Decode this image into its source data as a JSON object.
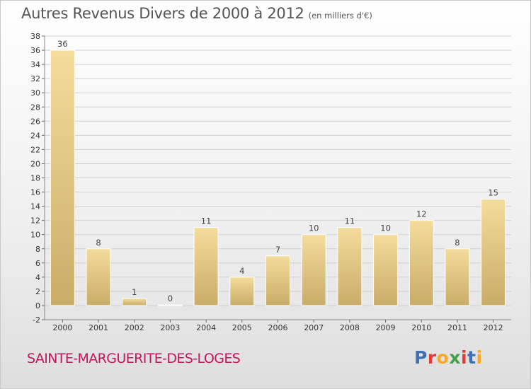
{
  "title": "Autres Revenus Divers de 2000 à 2012",
  "unit_note": "(en milliers d'€)",
  "commune": "SAINTE-MARGUERITE-DES-LOGES",
  "logo": {
    "text": "Proxiti",
    "letter_colors": [
      "#3f6fb5",
      "#e53935",
      "#f9a825",
      "#43a047",
      "#e53935",
      "#3f6fb5",
      "#f9a825"
    ]
  },
  "colors": {
    "bar_light": "#f4dc9c",
    "bar_dark": "#c9ac68",
    "grid": "#cfcfcf",
    "commune": "#c2185b",
    "title": "#555555"
  },
  "chart_data": {
    "type": "bar",
    "title": "Autres Revenus Divers de 2000 à 2012",
    "subtitle": "(en milliers d'€)",
    "categories": [
      "2000",
      "2001",
      "2002",
      "2003",
      "2004",
      "2005",
      "2006",
      "2007",
      "2008",
      "2009",
      "2010",
      "2011",
      "2012"
    ],
    "values": [
      36,
      8,
      1,
      0,
      11,
      4,
      7,
      10,
      11,
      10,
      12,
      8,
      15
    ],
    "data_labels": [
      "36",
      "8",
      "1",
      "0",
      "11",
      "4",
      "7",
      "10",
      "11",
      "10",
      "12",
      "8",
      "15"
    ],
    "ylim": [
      -2,
      38
    ],
    "yticks": [
      -2,
      0,
      2,
      4,
      6,
      8,
      10,
      12,
      14,
      16,
      18,
      20,
      22,
      24,
      26,
      28,
      30,
      32,
      34,
      36,
      38
    ],
    "grid": true,
    "xlabel": "",
    "ylabel": ""
  }
}
